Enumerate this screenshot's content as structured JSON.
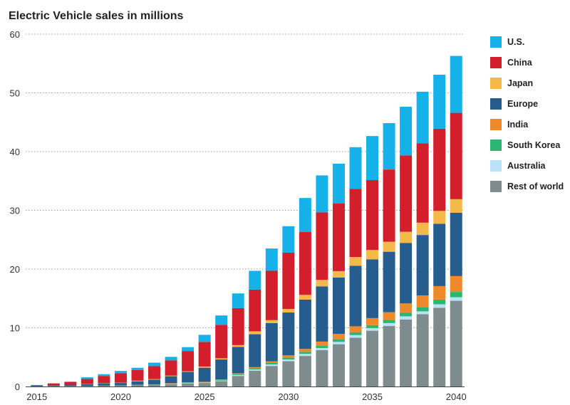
{
  "chart_data": {
    "type": "bar",
    "stacked": true,
    "title": "Electric Vehicle sales in millions",
    "xlabel": "",
    "ylabel": "",
    "ylim": [
      0,
      60
    ],
    "y_ticks": [
      "0",
      "10",
      "20",
      "30",
      "40",
      "50",
      "60"
    ],
    "x_tick_labels": [
      "2015",
      "2020",
      "2025",
      "2030",
      "2035",
      "2040"
    ],
    "grid": "horizontal dotted",
    "legend_position": "right",
    "categories": [
      "2015",
      "2016",
      "2017",
      "2018",
      "2019",
      "2020",
      "2021",
      "2022",
      "2023",
      "2024",
      "2025",
      "2026",
      "2027",
      "2028",
      "2029",
      "2030",
      "2031",
      "2032",
      "2033",
      "2034",
      "2035",
      "2036",
      "2037",
      "2038",
      "2039",
      "2040"
    ],
    "series": [
      {
        "name": "Rest of world",
        "color": "#7f8c8d",
        "values": [
          0.05,
          0.08,
          0.1,
          0.12,
          0.15,
          0.2,
          0.25,
          0.3,
          0.4,
          0.5,
          0.6,
          0.9,
          1.8,
          2.7,
          3.5,
          4.3,
          5.2,
          6.2,
          7.2,
          8.3,
          9.5,
          10.3,
          11.4,
          12.3,
          13.4,
          14.6
        ]
      },
      {
        "name": "Australia",
        "color": "#b8e2f7",
        "values": [
          0,
          0,
          0,
          0,
          0,
          0,
          0.02,
          0.03,
          0.05,
          0.05,
          0.05,
          0.1,
          0.15,
          0.2,
          0.25,
          0.3,
          0.35,
          0.35,
          0.4,
          0.45,
          0.45,
          0.5,
          0.55,
          0.5,
          0.6,
          0.6
        ]
      },
      {
        "name": "South Korea",
        "color": "#2bb673",
        "values": [
          0,
          0,
          0,
          0,
          0,
          0,
          0.02,
          0.03,
          0.05,
          0.05,
          0.05,
          0.1,
          0.15,
          0.2,
          0.25,
          0.3,
          0.35,
          0.4,
          0.45,
          0.5,
          0.5,
          0.55,
          0.6,
          0.7,
          0.8,
          0.9
        ]
      },
      {
        "name": "India",
        "color": "#ee8a2a",
        "values": [
          0,
          0,
          0,
          0,
          0,
          0,
          0,
          0,
          0.05,
          0.1,
          0.1,
          0.1,
          0.15,
          0.2,
          0.3,
          0.4,
          0.5,
          0.7,
          0.9,
          1.0,
          1.2,
          1.3,
          1.6,
          2.0,
          2.3,
          2.7
        ]
      },
      {
        "name": "Europe",
        "color": "#245d8e",
        "values": [
          0.1,
          0.15,
          0.2,
          0.3,
          0.4,
          0.4,
          0.6,
          0.8,
          1.2,
          1.8,
          2.4,
          3.4,
          4.5,
          5.6,
          6.5,
          7.3,
          8.4,
          9.4,
          9.6,
          10.3,
          10.0,
          10.3,
          10.3,
          10.3,
          10.6,
          10.8
        ]
      },
      {
        "name": "Japan",
        "color": "#f5b94a",
        "values": [
          0,
          0,
          0,
          0.05,
          0.05,
          0.05,
          0.1,
          0.1,
          0.1,
          0.1,
          0.2,
          0.2,
          0.3,
          0.5,
          0.5,
          0.6,
          0.8,
          1.1,
          1.1,
          1.5,
          1.6,
          1.7,
          1.9,
          2.1,
          2.2,
          2.3
        ]
      },
      {
        "name": "China",
        "color": "#d21f2b",
        "values": [
          0.1,
          0.3,
          0.5,
          0.8,
          1.2,
          1.6,
          1.8,
          2.2,
          2.6,
          3.4,
          4.2,
          5.7,
          6.3,
          7.1,
          8.4,
          9.6,
          10.7,
          11.5,
          11.5,
          11.6,
          11.9,
          12.3,
          13.0,
          13.5,
          14.0,
          14.7
        ]
      },
      {
        "name": "U.S.",
        "color": "#16b1e8",
        "values": [
          0,
          0,
          0,
          0.3,
          0.3,
          0.4,
          0.4,
          0.6,
          0.6,
          0.7,
          1.2,
          1.6,
          2.5,
          3.2,
          3.8,
          4.5,
          5.8,
          6.3,
          6.8,
          7.1,
          7.5,
          7.9,
          8.3,
          8.8,
          9.2,
          9.7
        ]
      }
    ],
    "legend_order": [
      "U.S.",
      "China",
      "Japan",
      "Europe",
      "India",
      "South Korea",
      "Australia",
      "Rest of world"
    ]
  }
}
